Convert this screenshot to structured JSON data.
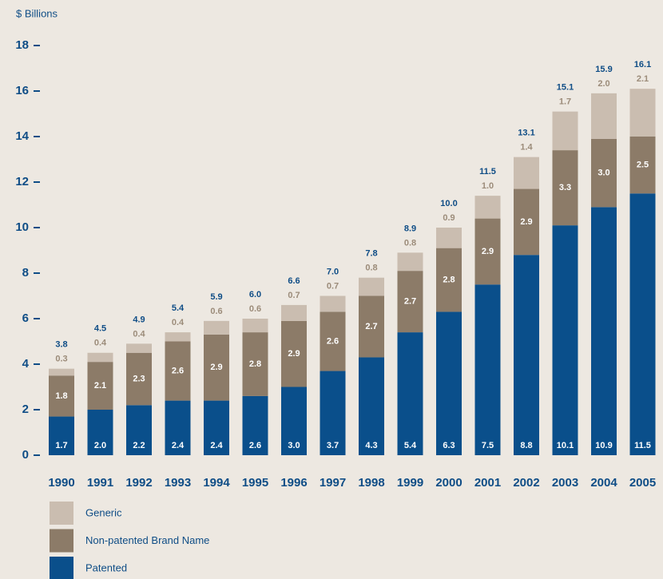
{
  "chart_data": {
    "type": "stacked_bar",
    "y_label": "$ Billions",
    "categories": [
      "1990",
      "1991",
      "1992",
      "1993",
      "1994",
      "1995",
      "1996",
      "1997",
      "1998",
      "1999",
      "2000",
      "2001",
      "2002",
      "2003",
      "2004",
      "2005"
    ],
    "series": [
      {
        "name": "Patented",
        "color": "#0a4f8b",
        "values": [
          1.7,
          2.0,
          2.2,
          2.4,
          2.4,
          2.6,
          3.0,
          3.7,
          4.3,
          5.4,
          6.3,
          7.5,
          8.8,
          10.1,
          10.9,
          11.5
        ],
        "value_labels": [
          "1.7",
          "2.0",
          "2.2",
          "2.4",
          "2.4",
          "2.6",
          "3.0",
          "3.7",
          "4.3",
          "5.4",
          "6.3",
          "7.5",
          "8.8",
          "10.1",
          "10.9",
          "11.5"
        ]
      },
      {
        "name": "Non-patented Brand Name",
        "color": "#8c7b68",
        "values": [
          1.8,
          2.1,
          2.3,
          2.6,
          2.9,
          2.8,
          2.9,
          2.6,
          2.7,
          2.7,
          2.8,
          2.9,
          2.9,
          3.3,
          3.0,
          2.5
        ],
        "value_labels": [
          "1.8",
          "2.1",
          "2.3",
          "2.6",
          "2.9",
          "2.8",
          "2.9",
          "2.6",
          "2.7",
          "2.7",
          "2.8",
          "2.9",
          "2.9",
          "3.3",
          "3.0",
          "2.5"
        ]
      },
      {
        "name": "Generic",
        "color": "#cabdb0",
        "values": [
          0.3,
          0.4,
          0.4,
          0.4,
          0.6,
          0.6,
          0.7,
          0.7,
          0.8,
          0.8,
          0.9,
          1.0,
          1.4,
          1.7,
          2.0,
          2.1
        ],
        "value_labels": [
          "0.3",
          "0.4",
          "0.4",
          "0.4",
          "0.6",
          "0.6",
          "0.7",
          "0.7",
          "0.8",
          "0.8",
          "0.9",
          "1.0",
          "1.4",
          "1.7",
          "2.0",
          "2.1"
        ]
      }
    ],
    "totals": {
      "values": [
        3.8,
        4.5,
        4.9,
        5.4,
        5.9,
        6.0,
        6.6,
        7.0,
        7.8,
        8.9,
        10.0,
        11.5,
        13.1,
        15.1,
        15.9,
        16.1
      ],
      "value_labels": [
        "3.8",
        "4.5",
        "4.9",
        "5.4",
        "5.9",
        "6.0",
        "6.6",
        "7.0",
        "7.8",
        "8.9",
        "10.0",
        "11.5",
        "13.1",
        "15.1",
        "15.9",
        "16.1"
      ]
    },
    "ylim": [
      0,
      18
    ],
    "yticks": [
      0,
      2,
      4,
      6,
      8,
      10,
      12,
      14,
      16,
      18
    ]
  }
}
